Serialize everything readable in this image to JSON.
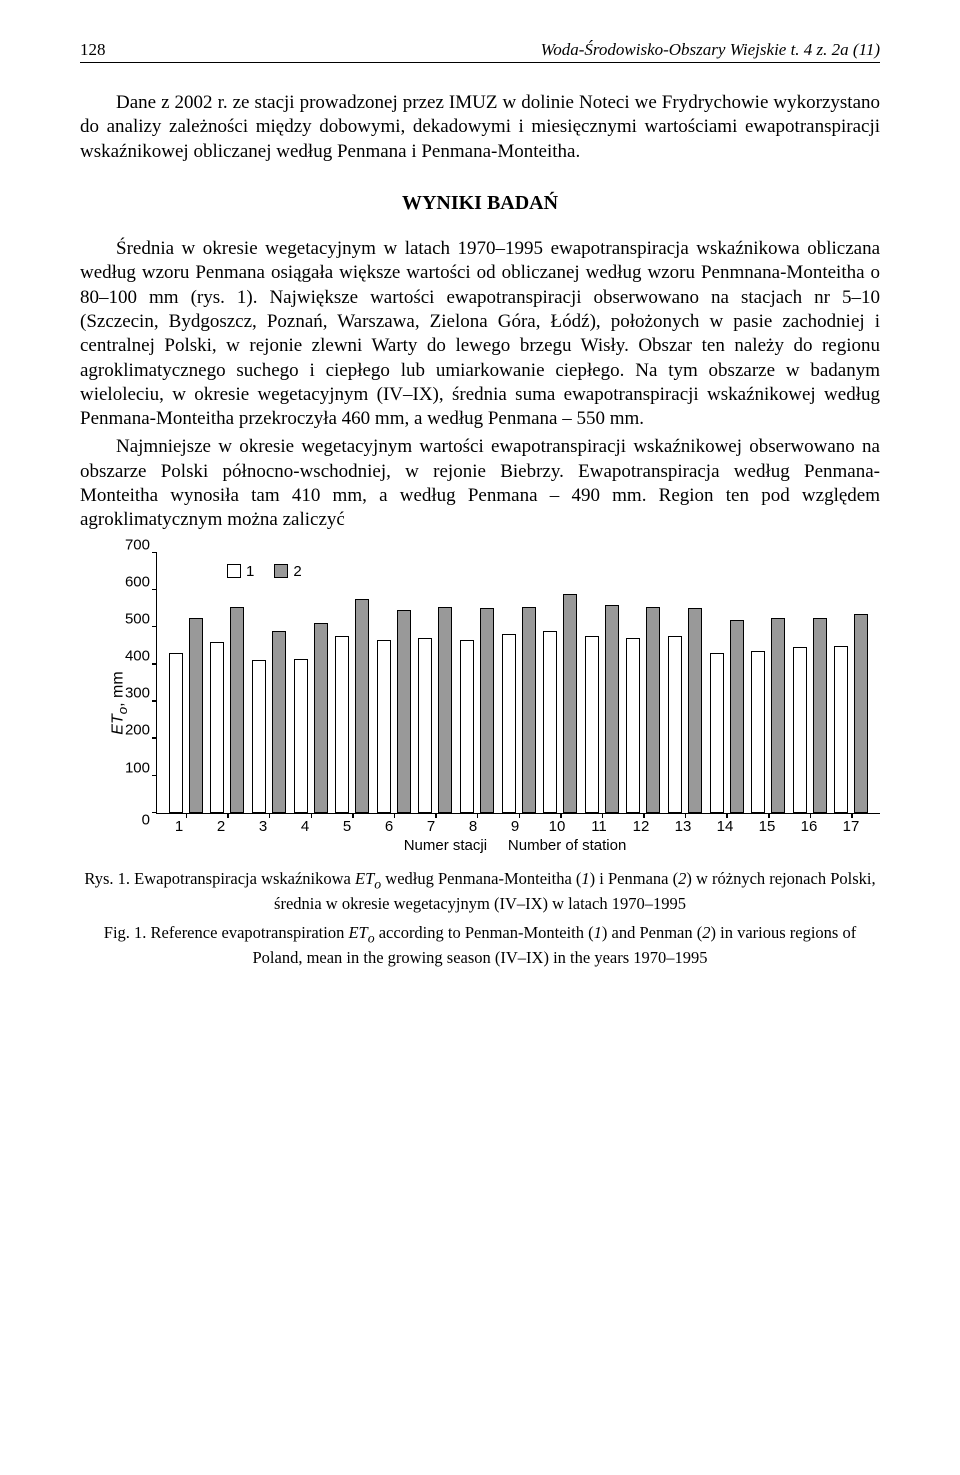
{
  "header": {
    "page_number": "128",
    "running_title": "Woda-Środowisko-Obszary Wiejskie t. 4 z. 2a (11)"
  },
  "paragraphs": {
    "p1": "Dane z 2002 r. ze stacji prowadzonej przez IMUZ w dolinie Noteci we Frydrychowie wykorzystano do analizy zależności między dobowymi, dekadowymi i miesięcznymi wartościami ewapotranspiracji wskaźnikowej obliczanej według Penmana i Penmana-Monteitha.",
    "section_title": "WYNIKI BADAŃ",
    "p2": "Średnia w okresie wegetacyjnym w latach 1970–1995 ewapotranspiracja wskaźnikowa obliczana według wzoru Penmana osiągała większe wartości od obliczanej według wzoru Penmnana-Monteitha o 80–100 mm (rys. 1). Największe wartości ewapotranspiracji obserwowano na stacjach nr 5–10 (Szczecin, Bydgoszcz, Poznań, Warszawa, Zielona Góra, Łódź), położonych w pasie zachodniej i centralnej Polski, w rejonie zlewni Warty do lewego brzegu Wisły. Obszar ten należy do regionu agroklimatycznego suchego i ciepłego lub umiarkowanie ciepłego. Na tym obszarze w badanym wieloleciu, w okresie wegetacyjnym (IV–IX), średnia suma ewapotranspiracji wskaźnikowej według Penmana-Monteitha przekroczyła 460 mm, a według Penmana – 550 mm.",
    "p3": "Najmniejsze w okresie wegetacyjnym wartości ewapotranspiracji wskaźnikowej obserwowano na obszarze Polski północno-wschodniej, w rejonie Biebrzy. Ewapotranspiracja według Penmana-Monteitha wynosiła tam 410 mm, a według Penmana – 490 mm. Region ten pod względem agroklimatycznym można zaliczyć"
  },
  "figure": {
    "chart": {
      "type": "bar",
      "ylabel_symbol": "ET",
      "ylabel_sub": "o",
      "ylabel_unit": ", mm",
      "ylim": [
        0,
        700
      ],
      "ytick_step": 100,
      "yticks": [
        "700",
        "600",
        "500",
        "400",
        "300",
        "200",
        "100",
        "0"
      ],
      "categories": [
        "1",
        "2",
        "3",
        "4",
        "5",
        "6",
        "7",
        "8",
        "9",
        "10",
        "11",
        "12",
        "13",
        "14",
        "15",
        "16",
        "17"
      ],
      "series": [
        {
          "name": "1",
          "color": "#ffffff",
          "border": "#000000",
          "values": [
            430,
            460,
            410,
            415,
            475,
            465,
            470,
            465,
            480,
            490,
            475,
            470,
            475,
            430,
            435,
            445,
            450
          ]
        },
        {
          "name": "2",
          "color": "#999999",
          "border": "#000000",
          "values": [
            525,
            555,
            490,
            510,
            575,
            545,
            555,
            550,
            555,
            590,
            560,
            555,
            550,
            520,
            525,
            525,
            535
          ]
        }
      ],
      "x_axis_label_pl": "Numer stacji",
      "x_axis_label_en": "Number of station",
      "legend": [
        "1",
        "2"
      ],
      "background_color": "#ffffff",
      "axis_color": "#000000"
    },
    "caption_pl_1": "Rys. 1. Ewapotranspiracja wskaźnikowa ",
    "caption_pl_sym": "ET",
    "caption_pl_sub": "o",
    "caption_pl_2": " według Penmana-Monteitha (",
    "caption_pl_i1": "1",
    "caption_pl_3": ") i Penmana (",
    "caption_pl_i2": "2",
    "caption_pl_4": ") w różnych rejonach Polski, średnia w okresie wegetacyjnym (IV–IX) w latach 1970–1995",
    "caption_en_1": "Fig. 1. Reference evapotranspiration ",
    "caption_en_sym": "ET",
    "caption_en_sub": "o",
    "caption_en_2": " according to Penman-Monteith (",
    "caption_en_i1": "1",
    "caption_en_3": ") and Penman (",
    "caption_en_i2": "2",
    "caption_en_4": ") in various regions of Poland, mean in the growing season (IV–IX) in the years 1970–1995"
  }
}
